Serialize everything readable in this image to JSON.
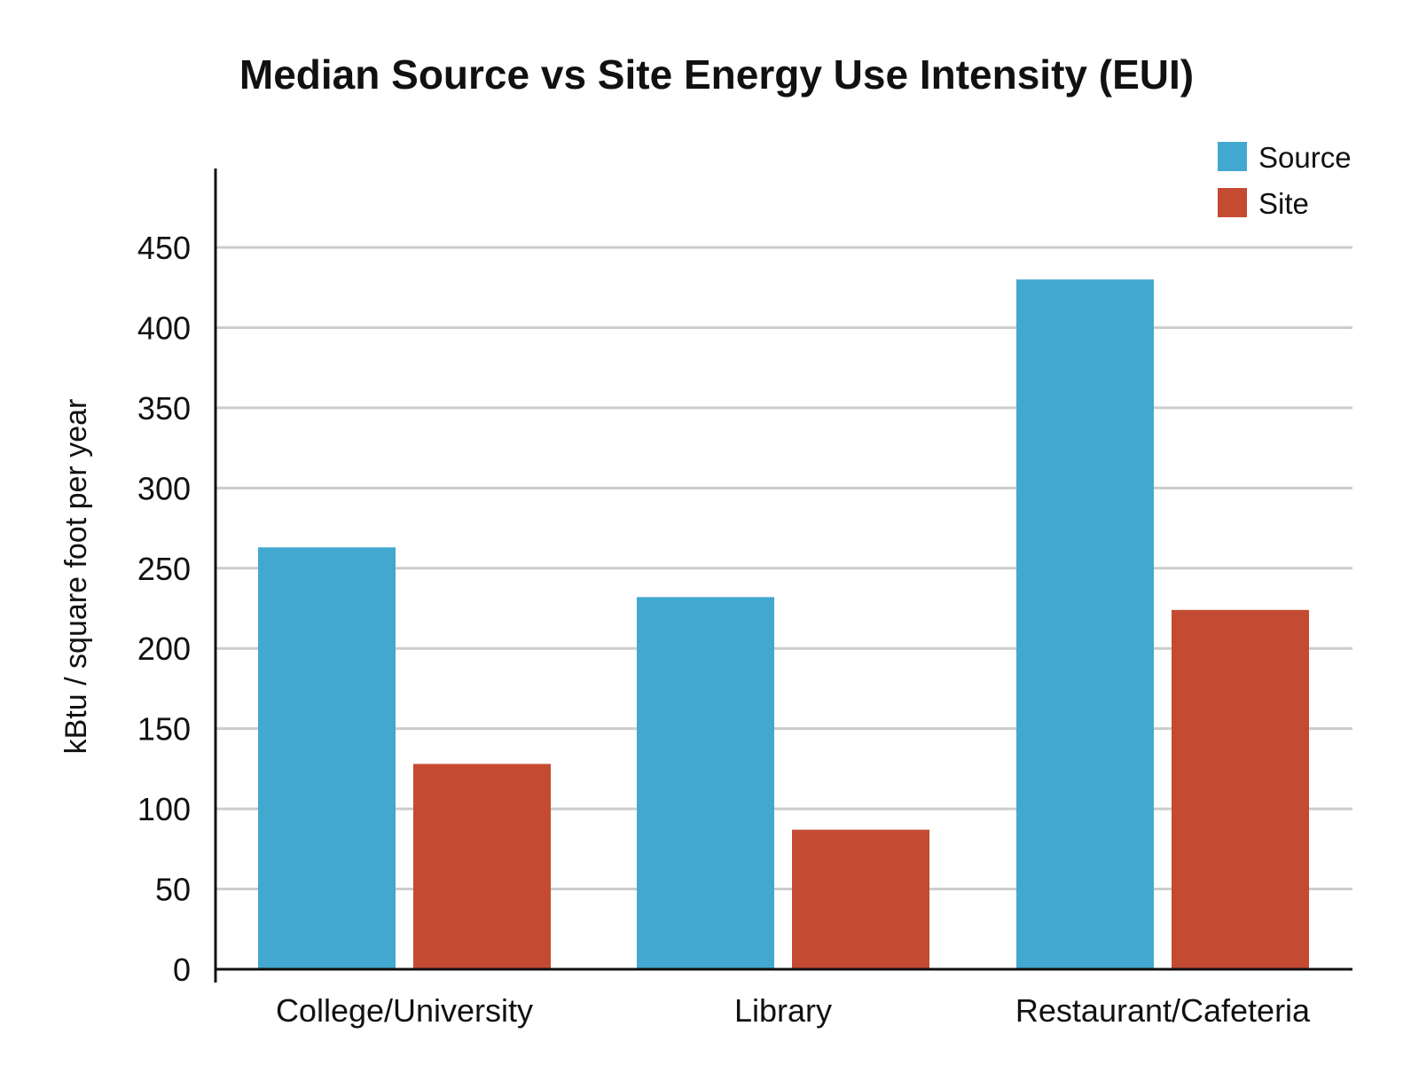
{
  "chart_data": {
    "type": "bar",
    "title": "Median Source vs Site Energy Use Intensity (EUI)",
    "xlabel": "",
    "ylabel": "kBtu / square foot per year",
    "categories": [
      "College/University",
      "Library",
      "Restaurant/Cafeteria"
    ],
    "series": [
      {
        "name": "Source",
        "color": "#42a8d0",
        "values": [
          263,
          232,
          430
        ]
      },
      {
        "name": "Site",
        "color": "#c54a32",
        "values": [
          128,
          87,
          224
        ]
      }
    ],
    "ylim": [
      0,
      450
    ],
    "yticks": [
      0,
      50,
      100,
      150,
      200,
      250,
      300,
      350,
      400,
      450
    ],
    "grid": true,
    "legend": "top-right"
  }
}
